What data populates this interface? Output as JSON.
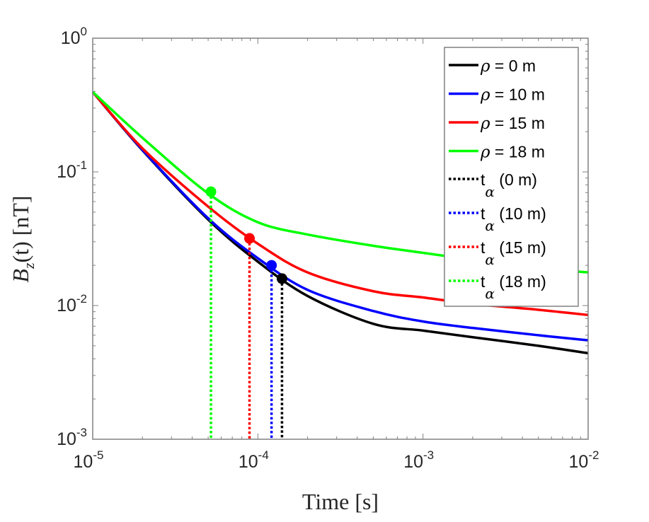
{
  "chart_data": {
    "type": "line",
    "xlabel": "Time [s]",
    "ylabel": "B_z(t) [nT]",
    "ylabel_parts": {
      "main": "B",
      "sub": "z",
      "rest": "(t) [nT]"
    },
    "xscale": "log",
    "yscale": "log",
    "xlim": [
      1e-05,
      0.01
    ],
    "ylim": [
      0.001,
      1
    ],
    "grid": false,
    "legend_placement": "top-right",
    "x_ticks": [
      {
        "base": "10",
        "exp": "-5",
        "value": 1e-05
      },
      {
        "base": "10",
        "exp": "-4",
        "value": 0.0001
      },
      {
        "base": "10",
        "exp": "-3",
        "value": 0.001
      },
      {
        "base": "10",
        "exp": "-2",
        "value": 0.01
      }
    ],
    "y_ticks": [
      {
        "base": "10",
        "exp": "-3",
        "value": 0.001
      },
      {
        "base": "10",
        "exp": "-2",
        "value": 0.01
      },
      {
        "base": "10",
        "exp": "-1",
        "value": 0.1
      },
      {
        "base": "10",
        "exp": "0",
        "value": 1
      }
    ],
    "x": [
      1e-05,
      2e-05,
      5e-05,
      0.0001,
      0.0002,
      0.0005,
      0.001,
      0.002,
      0.005,
      0.01
    ],
    "series": [
      {
        "name": "ρ = 0 m",
        "greek": "ρ",
        "text": " = 0 m",
        "color": "#000000",
        "values": [
          0.396,
          0.145,
          0.044,
          0.0213,
          0.0118,
          0.0073,
          0.0065,
          0.0058,
          0.005,
          0.0044
        ]
      },
      {
        "name": "ρ = 10 m",
        "greek": "ρ",
        "text": " = 10 m",
        "color": "#0000ff",
        "values": [
          0.396,
          0.146,
          0.045,
          0.0226,
          0.0131,
          0.0091,
          0.0076,
          0.0068,
          0.006,
          0.0055
        ]
      },
      {
        "name": "ρ = 15 m",
        "greek": "ρ",
        "text": " = 15 m",
        "color": "#ff0000",
        "values": [
          0.396,
          0.15,
          0.055,
          0.029,
          0.0177,
          0.0128,
          0.0115,
          0.0103,
          0.0093,
          0.0085
        ]
      },
      {
        "name": "ρ = 18 m",
        "greek": "ρ",
        "text": " = 18 m",
        "color": "#00ff00",
        "values": [
          0.396,
          0.18,
          0.069,
          0.042,
          0.034,
          0.028,
          0.0248,
          0.022,
          0.019,
          0.0177
        ]
      }
    ],
    "markers": [
      {
        "name": "t_α (0 m)",
        "base": "t",
        "sub": "α",
        "text": " (0 m)",
        "color": "#000000",
        "x": 0.00014,
        "y": 0.0159
      },
      {
        "name": "t_α (10 m)",
        "base": "t",
        "sub": "α",
        "text": " (10 m)",
        "color": "#0000ff",
        "x": 0.000121,
        "y": 0.02
      },
      {
        "name": "t_α (15 m)",
        "base": "t",
        "sub": "α",
        "text": " (15 m)",
        "color": "#ff0000",
        "x": 8.9e-05,
        "y": 0.0318
      },
      {
        "name": "t_α (18 m)",
        "base": "t",
        "sub": "α",
        "text": " (18 m)",
        "color": "#00ff00",
        "x": 5.2e-05,
        "y": 0.071
      }
    ]
  }
}
